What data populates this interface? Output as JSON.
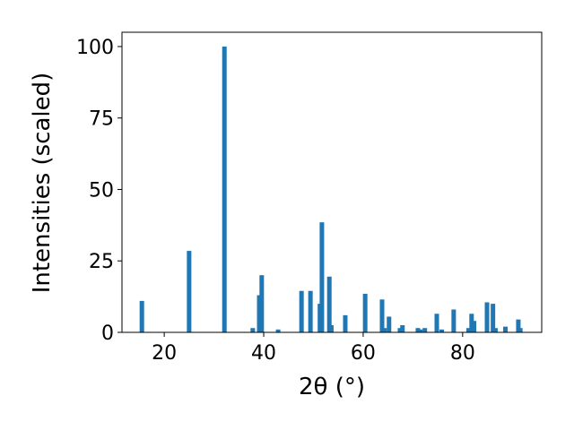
{
  "chart_data": {
    "type": "bar",
    "xlabel": "2θ (°)",
    "ylabel": "Intensities (scaled)",
    "color": "#1f77b4",
    "x": [
      15.5,
      25.0,
      32.1,
      37.8,
      39.1,
      39.6,
      42.9,
      47.6,
      49.4,
      51.3,
      51.7,
      53.2,
      53.6,
      56.4,
      60.4,
      63.8,
      64.3,
      65.2,
      67.4,
      67.9,
      71.0,
      71.5,
      72.4,
      74.8,
      75.8,
      78.2,
      81.2,
      81.8,
      82.3,
      84.9,
      86.1,
      86.6,
      88.6,
      91.2,
      91.6
    ],
    "values": [
      11,
      28.5,
      100,
      1.5,
      13,
      20,
      1,
      14.5,
      14.5,
      10,
      38.5,
      19.5,
      2.5,
      6,
      13.5,
      11.5,
      1.5,
      5.5,
      1.5,
      2.5,
      1.5,
      1,
      1.5,
      6.5,
      1,
      8,
      1.5,
      6.5,
      4,
      10.5,
      10,
      1.5,
      2,
      4.5,
      1.5
    ],
    "xlim": [
      11.5,
      95.9
    ],
    "xticks": [
      20,
      40,
      60,
      80
    ],
    "ylim": [
      0,
      105
    ],
    "yticks": [
      0,
      25,
      50,
      75,
      100
    ]
  }
}
